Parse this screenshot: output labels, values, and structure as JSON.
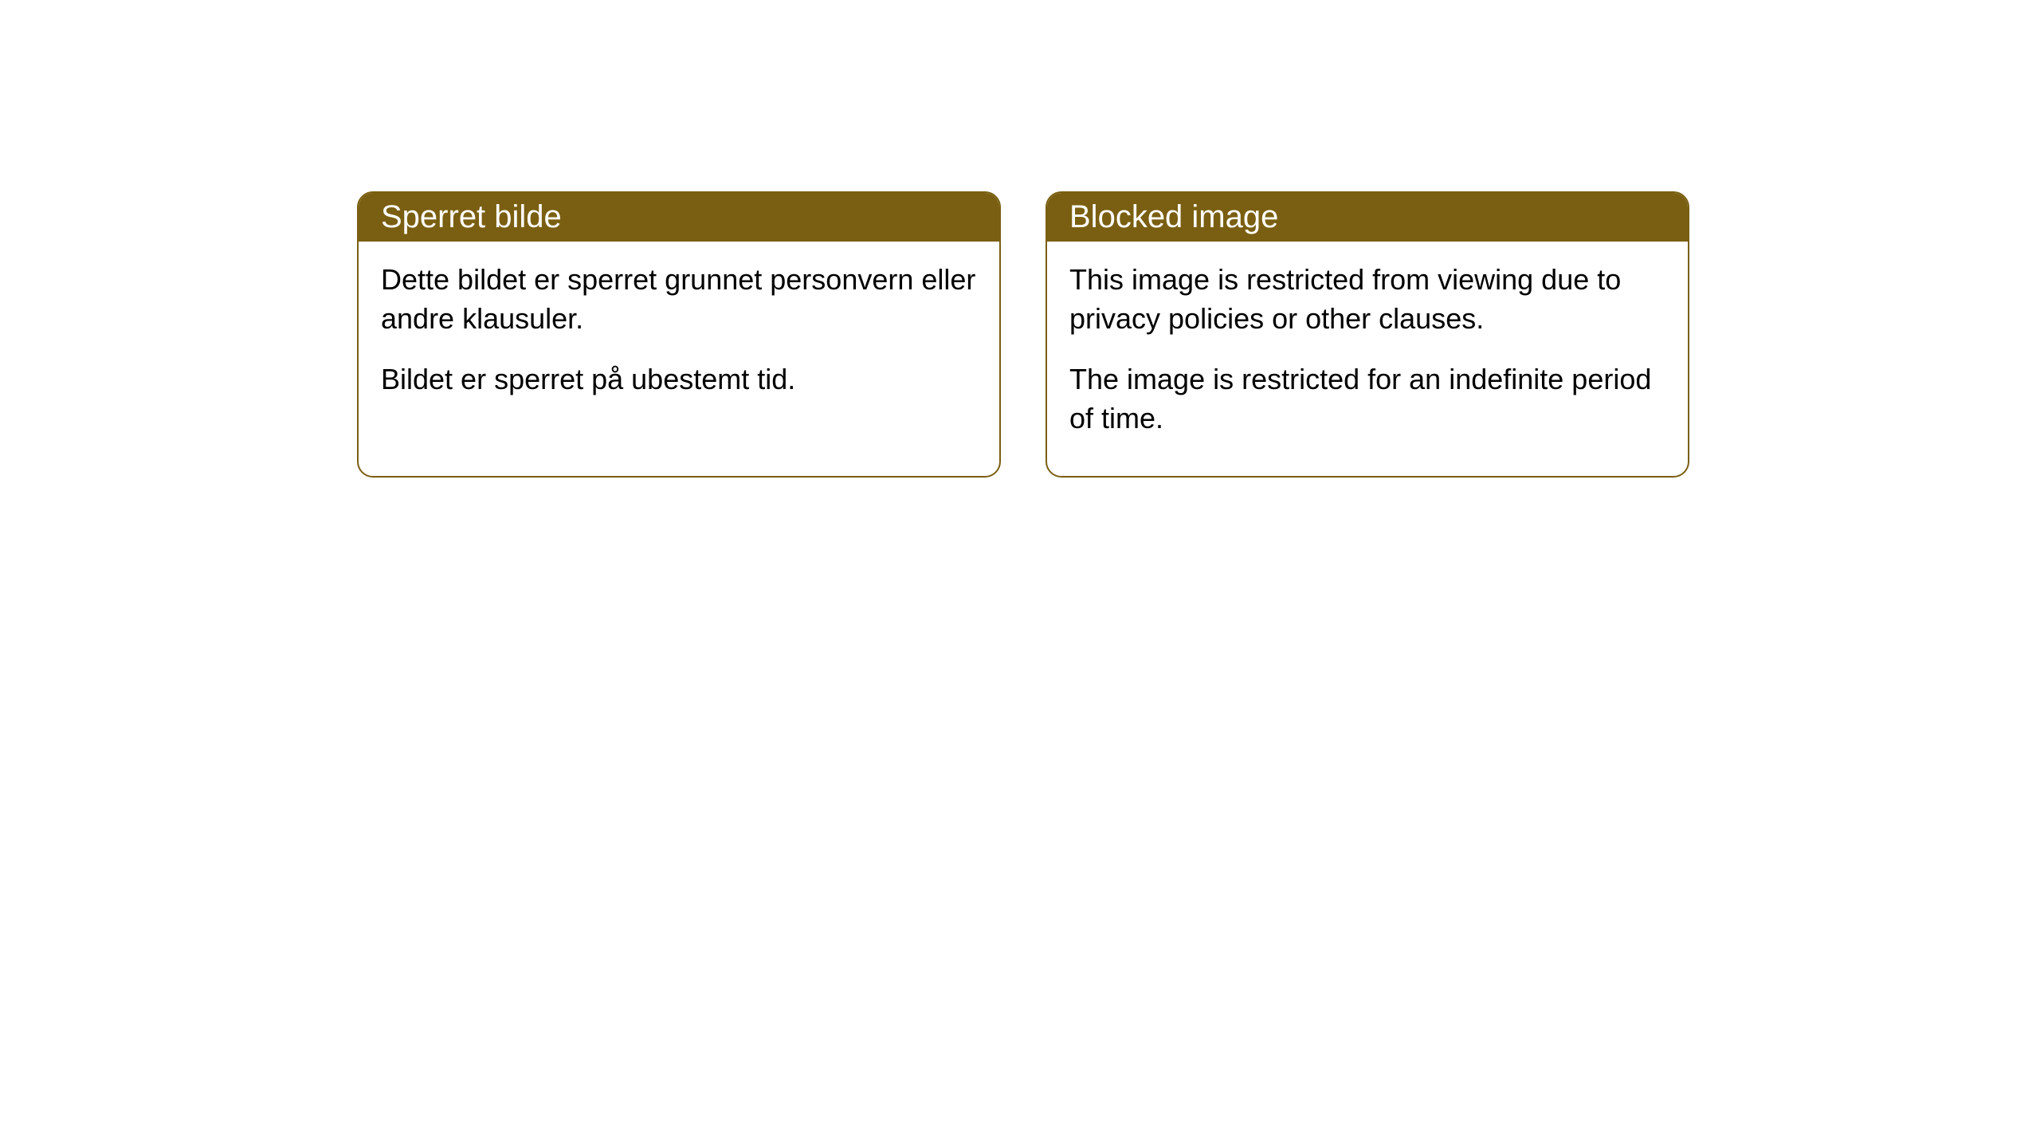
{
  "cards": [
    {
      "title": "Sperret bilde",
      "para1": "Dette bildet er sperret grunnet personvern eller andre klausuler.",
      "para2": "Bildet er sperret på ubestemt tid."
    },
    {
      "title": "Blocked image",
      "para1": "This image is restricted from viewing due to privacy policies or other clauses.",
      "para2": "The image is restricted for an indefinite period of time."
    }
  ],
  "style": {
    "header_bg_color": "#7a5f12",
    "header_text_color": "#ffffff",
    "border_color": "#7a5f12",
    "body_bg_color": "#ffffff",
    "body_text_color": "#000000",
    "border_radius": 20,
    "header_fontsize": 40,
    "body_fontsize": 36
  }
}
